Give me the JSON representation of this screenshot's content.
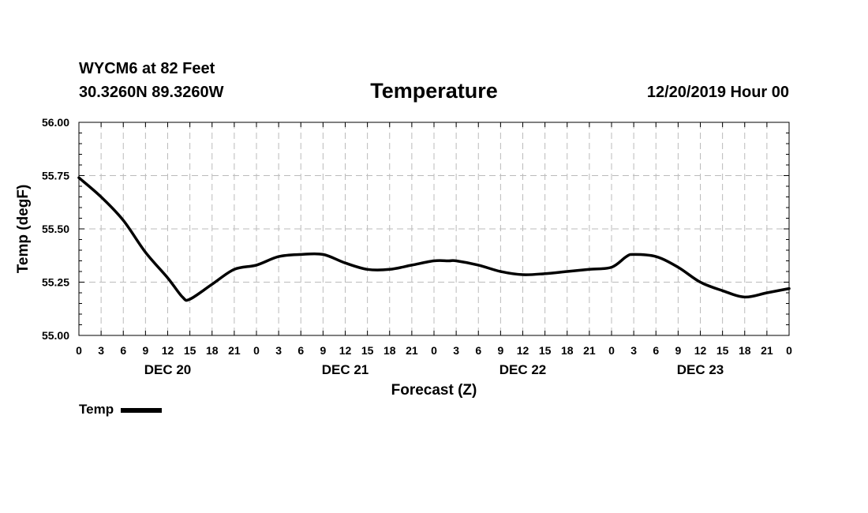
{
  "header": {
    "station": "WYCM6 at 82 Feet",
    "coords": "30.3260N 89.3260W",
    "title": "Temperature",
    "run_time": "12/20/2019 Hour 00"
  },
  "chart_data": {
    "type": "line",
    "title": "Temperature",
    "xlabel": "Forecast (Z)",
    "ylabel": "Temp (degF)",
    "ylim": [
      55.0,
      56.0
    ],
    "yticks": [
      "55.00",
      "55.25",
      "55.50",
      "55.75",
      "56.00"
    ],
    "x_unit": "forecast hour",
    "xlim": [
      0,
      96
    ],
    "x_tick_step_hours": 3,
    "x_tick_labels": [
      "0",
      "3",
      "6",
      "9",
      "12",
      "15",
      "18",
      "21",
      "0",
      "3",
      "6",
      "9",
      "12",
      "15",
      "18",
      "21",
      "0",
      "3",
      "6",
      "9",
      "12",
      "15",
      "18",
      "21",
      "0",
      "3",
      "6",
      "9",
      "12",
      "15",
      "18",
      "21",
      "0"
    ],
    "day_labels": [
      {
        "label": "DEC 20",
        "hour": 12
      },
      {
        "label": "DEC 21",
        "hour": 36
      },
      {
        "label": "DEC 22",
        "hour": 60
      },
      {
        "label": "DEC 23",
        "hour": 84
      }
    ],
    "grid": true,
    "legend": "bottom-left",
    "series": [
      {
        "name": "Temp",
        "color": "#000000",
        "x": [
          0,
          3,
          6,
          9,
          12,
          14,
          15,
          18,
          21,
          24,
          27,
          30,
          33,
          36,
          39,
          42,
          45,
          48,
          50,
          51,
          54,
          57,
          60,
          63,
          66,
          69,
          72,
          74,
          75,
          78,
          81,
          84,
          87,
          90,
          93,
          96
        ],
        "y": [
          55.74,
          55.65,
          55.54,
          55.39,
          55.27,
          55.18,
          55.17,
          55.24,
          55.31,
          55.33,
          55.37,
          55.38,
          55.38,
          55.34,
          55.31,
          55.31,
          55.33,
          55.35,
          55.35,
          55.35,
          55.33,
          55.3,
          55.285,
          55.29,
          55.3,
          55.31,
          55.32,
          55.37,
          55.38,
          55.37,
          55.32,
          55.25,
          55.21,
          55.18,
          55.2,
          55.22
        ]
      }
    ]
  }
}
